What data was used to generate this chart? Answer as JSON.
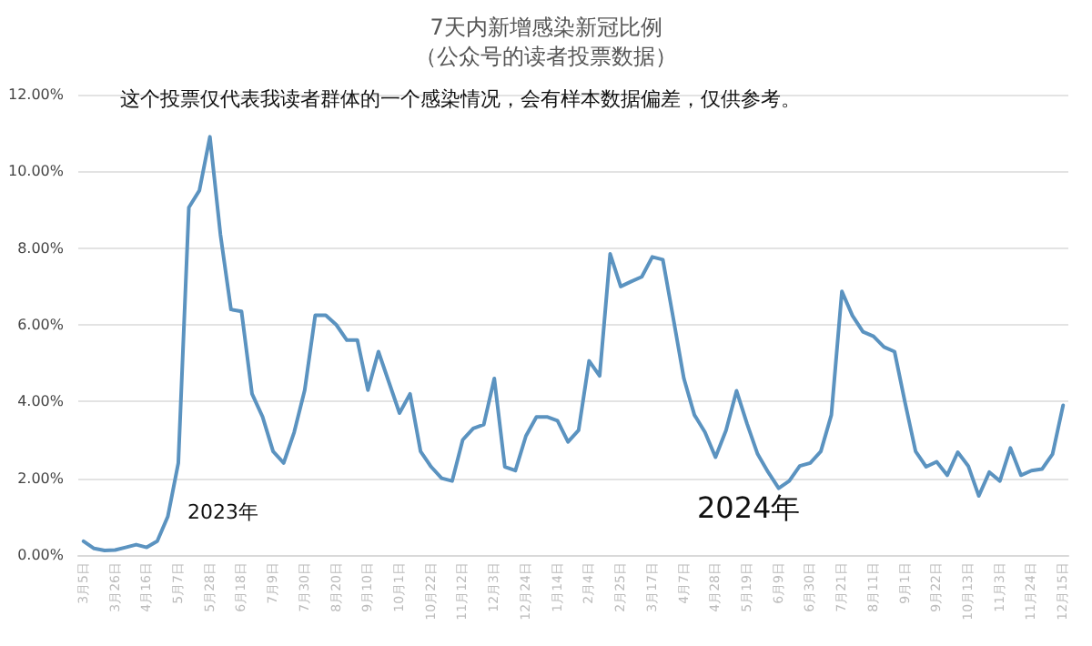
{
  "chart_data": {
    "type": "line",
    "title": "7天内新增感染新冠比例",
    "subtitle": "（公众号的读者投票数据）",
    "annotations": [
      "这个投票仅代表我读者群体的一个感染情况，会有样本数据偏差，仅供参考。",
      "2023年",
      "2024年"
    ],
    "categories": [
      "3月5日",
      null,
      null,
      "3月26日",
      null,
      null,
      "4月16日",
      null,
      null,
      "5月7日",
      null,
      null,
      "5月28日",
      null,
      null,
      "6月18日",
      null,
      null,
      "7月9日",
      null,
      null,
      "7月30日",
      null,
      null,
      "8月20日",
      null,
      null,
      "9月10日",
      null,
      null,
      "10月1日",
      null,
      null,
      "10月22日",
      null,
      null,
      "11月12日",
      null,
      null,
      "12月3日",
      null,
      null,
      "12月24日",
      null,
      null,
      "1月14日",
      null,
      null,
      "2月4日",
      null,
      null,
      "2月25日",
      null,
      null,
      "3月17日",
      null,
      null,
      "4月7日",
      null,
      null,
      "4月28日",
      null,
      null,
      "5月19日",
      null,
      null,
      "6月9日",
      null,
      null,
      "6月30日",
      null,
      null,
      "7月21日",
      null,
      null,
      "8月11日",
      null,
      null,
      "9月1日",
      null,
      null,
      "9月22日",
      null,
      null,
      "10月13日",
      null,
      null,
      "11月3日",
      null,
      null,
      "11月24日",
      null,
      null,
      "12月15日"
    ],
    "series": [
      {
        "color": "#5b93c0",
        "values": [
          0.36,
          0.17,
          0.12,
          0.13,
          0.2,
          0.27,
          0.2,
          0.36,
          1.0,
          2.4,
          9.06,
          9.5,
          10.9,
          8.35,
          6.4,
          6.35,
          4.2,
          3.6,
          2.7,
          2.4,
          3.2,
          4.3,
          6.25,
          6.25,
          6.0,
          5.6,
          5.6,
          4.3,
          5.3,
          4.5,
          3.7,
          4.2,
          2.7,
          2.3,
          2.0,
          1.93,
          3.0,
          3.3,
          3.4,
          4.6,
          2.3,
          2.2,
          3.1,
          3.6,
          3.6,
          3.5,
          2.95,
          3.25,
          5.06,
          4.67,
          7.85,
          7.0,
          7.13,
          7.25,
          7.77,
          7.7,
          6.16,
          4.6,
          3.65,
          3.2,
          2.55,
          3.25,
          4.28,
          3.42,
          2.63,
          2.16,
          1.74,
          1.93,
          2.32,
          2.4,
          2.7,
          3.65,
          6.87,
          6.24,
          5.82,
          5.7,
          5.42,
          5.3,
          3.97,
          2.7,
          2.3,
          2.43,
          2.08,
          2.68,
          2.32,
          1.54,
          2.16,
          1.93,
          2.79,
          2.08,
          2.2,
          2.24,
          2.63,
          3.9
        ]
      }
    ],
    "ylim": [
      0,
      12
    ],
    "yticks": [
      {
        "value": 0,
        "label": "0.00%"
      },
      {
        "value": 2,
        "label": "2.00%"
      },
      {
        "value": 4,
        "label": "4.00%"
      },
      {
        "value": 6,
        "label": "6.00%"
      },
      {
        "value": 8,
        "label": "8.00%"
      },
      {
        "value": 10,
        "label": "10.00%"
      },
      {
        "value": 12,
        "label": "12.00%"
      }
    ],
    "grid": "y",
    "marker": "none",
    "line_style": "solid"
  }
}
